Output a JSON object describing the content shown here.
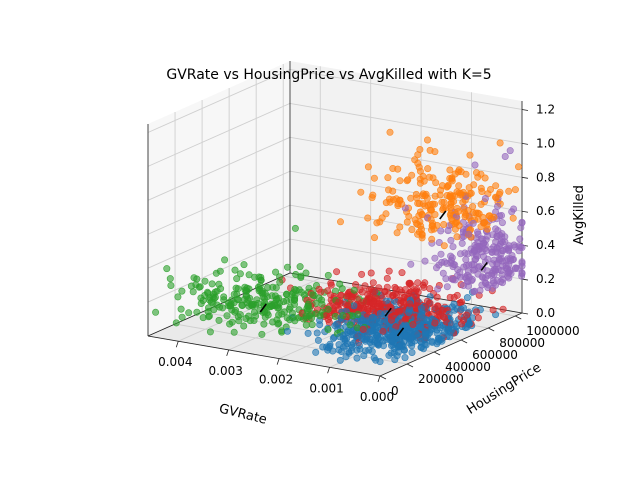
{
  "chart_data": {
    "type": "scatter",
    "projection": "3d",
    "title": "GVRate vs HousingPrice vs AvgKilled with K=5",
    "xlabel": "GVRate",
    "ylabel": "HousingPrice",
    "zlabel": "AvgKilled",
    "xlim": [
      0.0,
      0.0046
    ],
    "ylim": [
      0,
      1050000
    ],
    "zlim": [
      0.0,
      1.25
    ],
    "x_ticks": [
      "0.004",
      "0.003",
      "0.002",
      "0.001",
      "0.000"
    ],
    "y_ticks": [
      "0",
      "200000",
      "400000",
      "600000",
      "800000",
      "1000000"
    ],
    "z_ticks": [
      "0.0",
      "0.2",
      "0.4",
      "0.6",
      "0.8",
      "1.0",
      "1.2"
    ],
    "grid": true,
    "marker_alpha": 0.6,
    "clusters": [
      {
        "color": "#1f77b4",
        "centroid": [
          0.0008,
          450000,
          0.06
        ],
        "spread": [
          0.0006,
          180000,
          0.05
        ],
        "count": 500
      },
      {
        "color": "#ff7f0e",
        "centroid": [
          0.0009,
          800000,
          0.62
        ],
        "spread": [
          0.0006,
          140000,
          0.18
        ],
        "count": 220
      },
      {
        "color": "#2ca02c",
        "centroid": [
          0.0032,
          330000,
          0.12
        ],
        "spread": [
          0.0008,
          150000,
          0.09
        ],
        "count": 260
      },
      {
        "color": "#d62728",
        "centroid": [
          0.0015,
          620000,
          0.08
        ],
        "spread": [
          0.0007,
          140000,
          0.07
        ],
        "count": 380
      },
      {
        "color": "#9467bd",
        "centroid": [
          0.0004,
          920000,
          0.3
        ],
        "spread": [
          0.0004,
          110000,
          0.22
        ],
        "count": 240
      }
    ],
    "notable_points": [
      {
        "color": "#9467bd",
        "x": 0.0001,
        "y": 1000000,
        "z": 0.97
      },
      {
        "color": "#9467bd",
        "x": 0.0002,
        "y": 1000000,
        "z": 0.93
      },
      {
        "color": "#ff7f0e",
        "x": 0.001,
        "y": 700000,
        "z": 0.85
      },
      {
        "color": "#2ca02c",
        "x": 0.0035,
        "y": 680000,
        "z": 0.45
      },
      {
        "color": "#2ca02c",
        "x": 0.0041,
        "y": 380000,
        "z": 0.34
      }
    ],
    "centroid_markers": [
      [
        0.0008,
        450000,
        0.06
      ],
      [
        0.0009,
        800000,
        0.62
      ],
      [
        0.0032,
        330000,
        0.12
      ],
      [
        0.0015,
        620000,
        0.08
      ],
      [
        0.0004,
        920000,
        0.3
      ]
    ]
  }
}
